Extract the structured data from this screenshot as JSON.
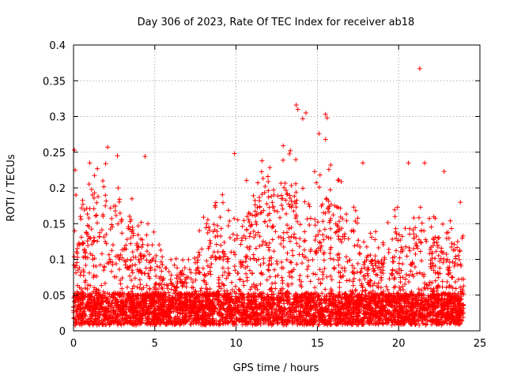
{
  "chart_data": {
    "type": "scatter",
    "title": "Day 306 of 2023, Rate Of TEC Index for receiver ab18",
    "xlabel": "GPS time / hours",
    "ylabel": "ROTI / TECUs",
    "xlim": [
      0,
      25
    ],
    "ylim": [
      0,
      0.4
    ],
    "xticks": [
      "0",
      "5",
      "10",
      "15",
      "20",
      "25"
    ],
    "yticks": [
      "0",
      "0.05",
      "0.1",
      "0.15",
      "0.2",
      "0.25",
      "0.3",
      "0.35",
      "0.4"
    ],
    "grid": true,
    "marker": "+",
    "color": "#ff0000",
    "series": [
      {
        "x_range": [
          0,
          24
        ],
        "note_points": [
          {
            "x": 0.05,
            "y": 0.253
          },
          {
            "x": 0.1,
            "y": 0.225
          },
          {
            "x": 0.15,
            "y": 0.19
          },
          {
            "x": 1.0,
            "y": 0.235
          },
          {
            "x": 1.8,
            "y": 0.21
          },
          {
            "x": 2.1,
            "y": 0.257
          },
          {
            "x": 2.7,
            "y": 0.245
          },
          {
            "x": 4.4,
            "y": 0.244
          },
          {
            "x": 9.9,
            "y": 0.248
          },
          {
            "x": 12.9,
            "y": 0.259
          },
          {
            "x": 13.7,
            "y": 0.316
          },
          {
            "x": 13.8,
            "y": 0.31
          },
          {
            "x": 14.1,
            "y": 0.297
          },
          {
            "x": 14.3,
            "y": 0.305
          },
          {
            "x": 15.1,
            "y": 0.276
          },
          {
            "x": 15.5,
            "y": 0.303
          },
          {
            "x": 15.6,
            "y": 0.298
          },
          {
            "x": 15.5,
            "y": 0.268
          },
          {
            "x": 17.8,
            "y": 0.235
          },
          {
            "x": 20.6,
            "y": 0.235
          },
          {
            "x": 21.3,
            "y": 0.367
          },
          {
            "x": 21.6,
            "y": 0.235
          },
          {
            "x": 22.8,
            "y": 0.223
          },
          {
            "x": 23.8,
            "y": 0.18
          }
        ]
      }
    ]
  }
}
